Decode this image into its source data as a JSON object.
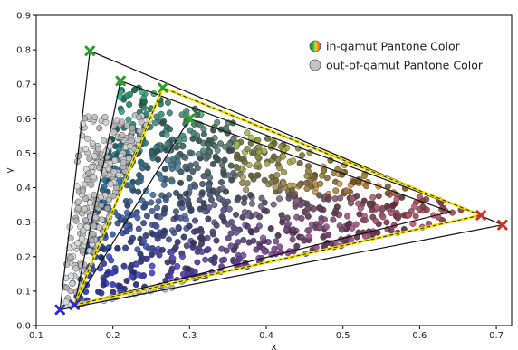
{
  "chart_data": {
    "type": "scatter",
    "xlabel": "x",
    "ylabel": "y",
    "xlim": [
      0.1,
      0.72
    ],
    "ylim": [
      0.0,
      0.9
    ],
    "x_ticks": [
      "0.1",
      "0.2",
      "0.3",
      "0.4",
      "0.5",
      "0.6",
      "0.7"
    ],
    "y_ticks": [
      "0.0",
      "0.1",
      "0.2",
      "0.3",
      "0.4",
      "0.5",
      "0.6",
      "0.7",
      "0.8",
      "0.9"
    ],
    "legend": {
      "placement": "top-right",
      "entries": [
        {
          "label": "in-gamut Pantone Color",
          "marker": "rainbow-circle"
        },
        {
          "label": "out-of-gamut Pantone Color",
          "marker": "gray-circle"
        }
      ]
    },
    "gamut_triangles": [
      {
        "style": "solid-black",
        "vertices": [
          [
            0.708,
            0.292
          ],
          [
            0.17,
            0.797
          ],
          [
            0.131,
            0.046
          ]
        ]
      },
      {
        "style": "solid-black",
        "vertices": [
          [
            0.68,
            0.32
          ],
          [
            0.21,
            0.71
          ],
          [
            0.15,
            0.06
          ]
        ]
      },
      {
        "style": "solid-black",
        "vertices": [
          [
            0.64,
            0.33
          ],
          [
            0.3,
            0.6
          ],
          [
            0.15,
            0.06
          ]
        ]
      },
      {
        "style": "yellow-dashed",
        "color": "#f2e200",
        "vertices": [
          [
            0.68,
            0.32
          ],
          [
            0.265,
            0.69
          ],
          [
            0.15,
            0.06
          ]
        ]
      }
    ],
    "primary_markers": [
      {
        "x": 0.708,
        "y": 0.292,
        "color": "#d62d20"
      },
      {
        "x": 0.68,
        "y": 0.32,
        "color": "#d62d20"
      },
      {
        "x": 0.17,
        "y": 0.797,
        "color": "#2ca02c"
      },
      {
        "x": 0.21,
        "y": 0.71,
        "color": "#2ca02c"
      },
      {
        "x": 0.265,
        "y": 0.69,
        "color": "#2ca02c"
      },
      {
        "x": 0.3,
        "y": 0.6,
        "color": "#2ca02c"
      },
      {
        "x": 0.131,
        "y": 0.046,
        "color": "#2b2bd6"
      },
      {
        "x": 0.15,
        "y": 0.06,
        "color": "#2b2bd6"
      }
    ],
    "point_cloud": {
      "in_gamut_points": 1000,
      "out_of_gamut_points": 260
    },
    "grid": false
  }
}
